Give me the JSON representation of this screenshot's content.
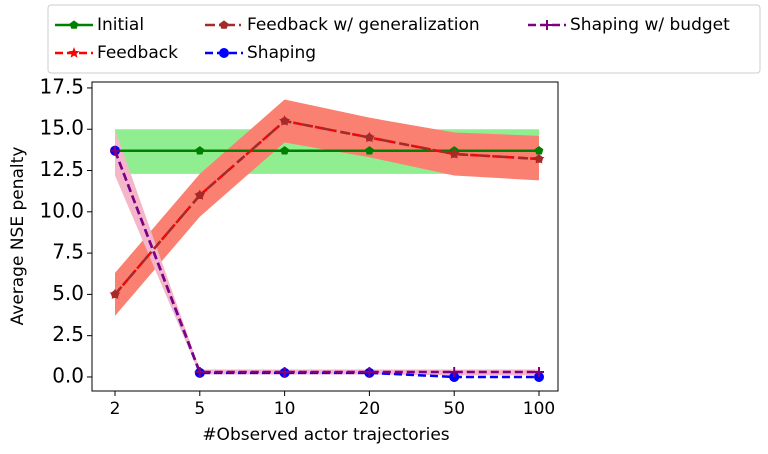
{
  "chart_data": {
    "type": "line",
    "xlabel": "#Observed actor trajectories",
    "ylabel": "Average NSE penalty",
    "categories": [
      "2",
      "5",
      "10",
      "20",
      "50",
      "100"
    ],
    "ylim": [
      -0.85,
      17.86
    ],
    "yticks": [
      {
        "value": 0,
        "label": "0.0"
      },
      {
        "value": 2.5,
        "label": "2.5"
      },
      {
        "value": 5,
        "label": "5.0"
      },
      {
        "value": 7.5,
        "label": "7.5"
      },
      {
        "value": 10,
        "label": "10.0"
      },
      {
        "value": 12.5,
        "label": "12.5"
      },
      {
        "value": 15,
        "label": "15.0"
      },
      {
        "value": 17.5,
        "label": "17.5"
      }
    ],
    "legend": "top",
    "series": [
      {
        "name": "Initial",
        "color": "#008000",
        "linestyle": "solid",
        "marker": "pentagon",
        "values": [
          13.7,
          13.7,
          13.7,
          13.7,
          13.7,
          13.7
        ],
        "band": {
          "color": "#90ee90",
          "lower": [
            12.3,
            12.3,
            12.3,
            12.3,
            12.3,
            12.3
          ],
          "upper": [
            15.0,
            15.0,
            15.0,
            15.0,
            15.0,
            15.0
          ]
        }
      },
      {
        "name": "Feedback",
        "color": "#ff0000",
        "linestyle": "dashed",
        "marker": "star",
        "values": [
          5.0,
          11.0,
          15.5,
          14.5,
          13.5,
          13.2
        ]
      },
      {
        "name": "Feedback w/ generalization",
        "color": "#a52a2a",
        "linestyle": "dashdot",
        "marker": "pentagon",
        "values": [
          5.0,
          11.0,
          15.5,
          14.5,
          13.5,
          13.2
        ],
        "band": {
          "color": "#fa8072",
          "lower": [
            3.7,
            9.7,
            14.2,
            13.3,
            12.2,
            11.9
          ],
          "upper": [
            6.3,
            12.3,
            16.8,
            15.7,
            14.8,
            14.6
          ]
        }
      },
      {
        "name": "Shaping",
        "color": "#0000ff",
        "linestyle": "dashed",
        "marker": "circle",
        "values": [
          13.7,
          0.25,
          0.25,
          0.25,
          0.0,
          0.0
        ]
      },
      {
        "name": "Shaping w/ budget",
        "color": "#800080",
        "linestyle": "dashed",
        "marker": "plus",
        "values": [
          13.7,
          0.3,
          0.3,
          0.3,
          0.3,
          0.3
        ],
        "band": {
          "color": "#f4b6c8",
          "lower": [
            12.2,
            0.15,
            0.15,
            0.15,
            0.1,
            0.1
          ],
          "upper": [
            15.0,
            0.45,
            0.45,
            0.45,
            0.45,
            0.45
          ]
        }
      }
    ]
  }
}
